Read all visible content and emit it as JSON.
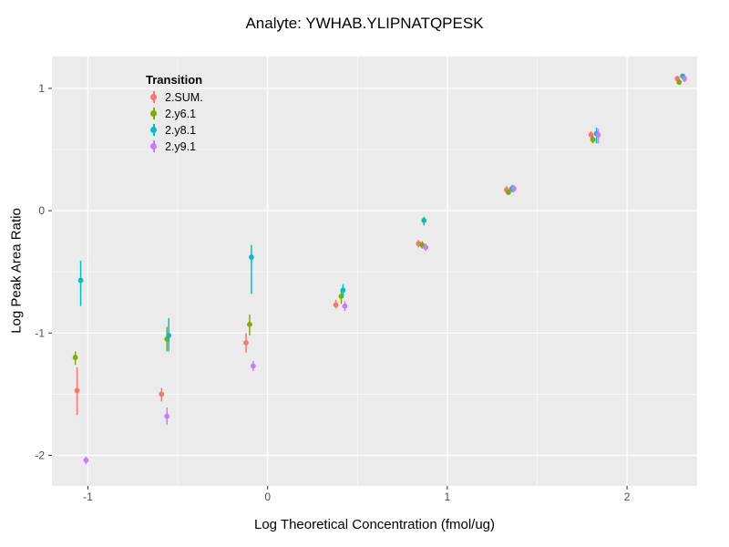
{
  "title": "Analyte: YWHAB.YLIPNATQPESK",
  "chart_data": {
    "type": "scatter",
    "title": "Analyte: YWHAB.YLIPNATQPESK",
    "xlabel": "Log Theoretical Concentration (fmol/ug)",
    "ylabel": "Log Peak Area Ratio",
    "xlim": [
      -1.2,
      2.39
    ],
    "ylim": [
      -2.25,
      1.26
    ],
    "xticks": [
      -1,
      0,
      1,
      2
    ],
    "yticks": [
      -2,
      -1,
      0,
      1
    ],
    "xticks_minor": [
      -0.5,
      0.5,
      1.5
    ],
    "yticks_minor": [
      -1.5,
      -0.5,
      0.5
    ],
    "grid": true,
    "panel_bg": "#EBEBEB",
    "grid_color": "#FFFFFF",
    "tick_label_color": "#4D4D4D",
    "legend_title": "Transition",
    "legend_position": "top-left-inside",
    "series": [
      {
        "name": "2.SUM.",
        "color": "#F8766D",
        "points": [
          {
            "x": -1.06,
            "y": -1.47,
            "lo": -1.67,
            "hi": -1.28
          },
          {
            "x": -0.59,
            "y": -1.5,
            "lo": -1.56,
            "hi": -1.45
          },
          {
            "x": -0.12,
            "y": -1.08,
            "lo": -1.16,
            "hi": -1.0
          },
          {
            "x": 0.38,
            "y": -0.77,
            "lo": -0.8,
            "hi": -0.73
          },
          {
            "x": 0.84,
            "y": -0.27,
            "lo": -0.3,
            "hi": -0.24
          },
          {
            "x": 1.33,
            "y": 0.17,
            "lo": 0.14,
            "hi": 0.2
          },
          {
            "x": 1.8,
            "y": 0.62,
            "lo": 0.59,
            "hi": 0.65
          },
          {
            "x": 2.28,
            "y": 1.08,
            "lo": 1.06,
            "hi": 1.1
          }
        ]
      },
      {
        "name": "2.y6.1",
        "color": "#7CAE00",
        "points": [
          {
            "x": -1.07,
            "y": -1.2,
            "lo": -1.26,
            "hi": -1.15
          },
          {
            "x": -0.56,
            "y": -1.05,
            "lo": -1.15,
            "hi": -0.95
          },
          {
            "x": -0.1,
            "y": -0.93,
            "lo": -1.02,
            "hi": -0.85
          },
          {
            "x": 0.41,
            "y": -0.7,
            "lo": -0.76,
            "hi": -0.64
          },
          {
            "x": 0.86,
            "y": -0.28,
            "lo": -0.31,
            "hi": -0.25
          },
          {
            "x": 1.34,
            "y": 0.15,
            "lo": 0.13,
            "hi": 0.17
          },
          {
            "x": 1.81,
            "y": 0.58,
            "lo": 0.55,
            "hi": 0.61
          },
          {
            "x": 2.29,
            "y": 1.05,
            "lo": 1.03,
            "hi": 1.07
          }
        ]
      },
      {
        "name": "2.y8.1",
        "color": "#00BFC4",
        "points": [
          {
            "x": -1.04,
            "y": -0.57,
            "lo": -0.78,
            "hi": -0.41
          },
          {
            "x": -0.55,
            "y": -1.02,
            "lo": -1.15,
            "hi": -0.88
          },
          {
            "x": -0.09,
            "y": -0.38,
            "lo": -0.68,
            "hi": -0.28
          },
          {
            "x": 0.42,
            "y": -0.65,
            "lo": -0.7,
            "hi": -0.6
          },
          {
            "x": 0.87,
            "y": -0.08,
            "lo": -0.12,
            "hi": -0.05
          },
          {
            "x": 1.36,
            "y": 0.18,
            "lo": 0.15,
            "hi": 0.21
          },
          {
            "x": 1.83,
            "y": 0.63,
            "lo": 0.55,
            "hi": 0.68
          },
          {
            "x": 2.31,
            "y": 1.1,
            "lo": 1.08,
            "hi": 1.12
          }
        ]
      },
      {
        "name": "2.y9.1",
        "color": "#C77CFF",
        "points": [
          {
            "x": -1.01,
            "y": -2.04,
            "lo": -2.07,
            "hi": -2.01
          },
          {
            "x": -0.56,
            "y": -1.68,
            "lo": -1.75,
            "hi": -1.61
          },
          {
            "x": -0.08,
            "y": -1.27,
            "lo": -1.31,
            "hi": -1.23
          },
          {
            "x": 0.43,
            "y": -0.78,
            "lo": -0.82,
            "hi": -0.74
          },
          {
            "x": 0.88,
            "y": -0.3,
            "lo": -0.33,
            "hi": -0.27
          },
          {
            "x": 1.37,
            "y": 0.18,
            "lo": 0.15,
            "hi": 0.21
          },
          {
            "x": 1.84,
            "y": 0.62,
            "lo": 0.55,
            "hi": 0.67
          },
          {
            "x": 2.32,
            "y": 1.08,
            "lo": 1.05,
            "hi": 1.11
          }
        ]
      }
    ]
  }
}
